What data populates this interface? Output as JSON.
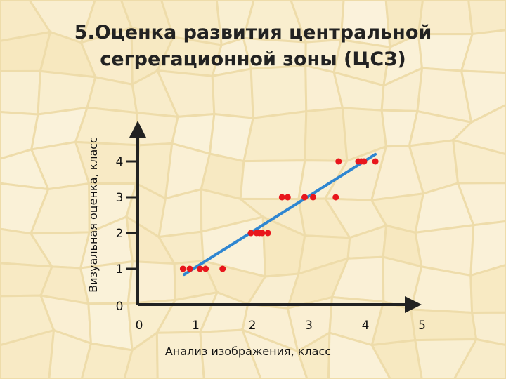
{
  "title_line1": "5.Оценка развития центральной",
  "title_line2": "сегрегационной зоны (ЦСЗ)",
  "chart_data": {
    "type": "scatter",
    "title": "5.Оценка развития центральной сегрегационной зоны (ЦСЗ)",
    "xlabel": "Анализ изображения, класс",
    "ylabel": "Визуальная оценка, класс",
    "xlim": [
      0,
      5
    ],
    "ylim": [
      0,
      4.8
    ],
    "x_ticks": [
      "0",
      "1",
      "2",
      "3",
      "4",
      "5"
    ],
    "y_ticks": [
      "0",
      "1",
      "2",
      "3",
      "4"
    ],
    "points": [
      {
        "x": 0.8,
        "y": 1
      },
      {
        "x": 0.92,
        "y": 1
      },
      {
        "x": 1.1,
        "y": 1
      },
      {
        "x": 1.2,
        "y": 1
      },
      {
        "x": 1.5,
        "y": 1
      },
      {
        "x": 2.0,
        "y": 2
      },
      {
        "x": 2.1,
        "y": 2
      },
      {
        "x": 2.15,
        "y": 2
      },
      {
        "x": 2.2,
        "y": 2
      },
      {
        "x": 2.3,
        "y": 2
      },
      {
        "x": 2.55,
        "y": 3
      },
      {
        "x": 2.65,
        "y": 3
      },
      {
        "x": 2.95,
        "y": 3
      },
      {
        "x": 3.1,
        "y": 3
      },
      {
        "x": 3.5,
        "y": 3
      },
      {
        "x": 3.55,
        "y": 4
      },
      {
        "x": 3.9,
        "y": 4
      },
      {
        "x": 3.95,
        "y": 4
      },
      {
        "x": 4.0,
        "y": 4
      },
      {
        "x": 4.2,
        "y": 4
      }
    ],
    "trendline": [
      {
        "x": 0.82,
        "y": 0.84
      },
      {
        "x": 4.2,
        "y": 4.2
      }
    ],
    "grid": false,
    "legend": "none",
    "colors": {
      "points": "#e8161c",
      "trendline": "#2f86d1",
      "axes": "#222222",
      "background": "#f6e6b4"
    }
  }
}
